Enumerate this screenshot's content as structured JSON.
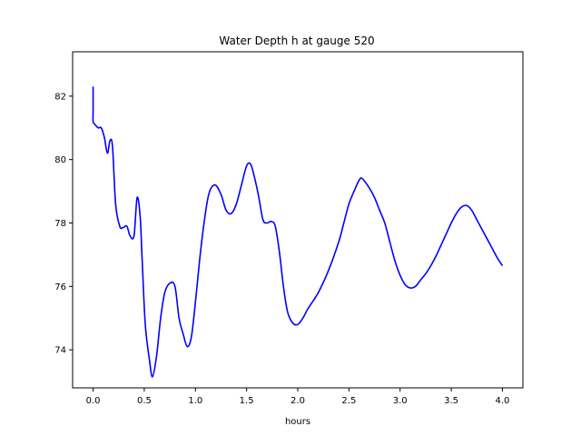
{
  "chart_data": {
    "type": "line",
    "title": "Water Depth h at gauge 520",
    "xlabel": "hours",
    "ylabel": "",
    "xlim": [
      -0.2,
      4.2
    ],
    "ylim": [
      72.8,
      83.4
    ],
    "xticks": [
      0.0,
      0.5,
      1.0,
      1.5,
      2.0,
      2.5,
      3.0,
      3.5,
      4.0
    ],
    "xtick_labels": [
      "0.0",
      "0.5",
      "1.0",
      "1.5",
      "2.0",
      "2.5",
      "3.0",
      "3.5",
      "4.0"
    ],
    "yticks": [
      74,
      76,
      78,
      80,
      82
    ],
    "ytick_labels": [
      "74",
      "76",
      "78",
      "80",
      "82"
    ],
    "grid": false,
    "legend": "none",
    "series": [
      {
        "color": "#0000ff",
        "x": [
          0.0,
          0.0,
          0.0,
          0.02,
          0.05,
          0.08,
          0.11,
          0.14,
          0.165,
          0.19,
          0.22,
          0.26,
          0.29,
          0.33,
          0.36,
          0.4,
          0.43,
          0.46,
          0.48,
          0.51,
          0.55,
          0.58,
          0.62,
          0.66,
          0.7,
          0.75,
          0.8,
          0.84,
          0.88,
          0.92,
          0.96,
          1.0,
          1.04,
          1.08,
          1.13,
          1.19,
          1.25,
          1.3,
          1.35,
          1.4,
          1.45,
          1.5,
          1.54,
          1.58,
          1.62,
          1.66,
          1.7,
          1.74,
          1.78,
          1.82,
          1.86,
          1.9,
          1.95,
          2.0,
          2.05,
          2.1,
          2.2,
          2.3,
          2.4,
          2.45,
          2.5,
          2.55,
          2.6,
          2.63,
          2.7,
          2.75,
          2.8,
          2.85,
          2.9,
          2.95,
          3.0,
          3.05,
          3.1,
          3.15,
          3.2,
          3.25,
          3.3,
          3.35,
          3.4,
          3.45,
          3.5,
          3.55,
          3.6,
          3.65,
          3.7,
          3.75,
          3.8,
          3.85,
          3.9,
          3.95,
          4.0
        ],
        "y": [
          82.3,
          81.5,
          81.2,
          81.1,
          81.0,
          81.0,
          80.7,
          80.2,
          80.6,
          80.4,
          78.6,
          77.9,
          77.85,
          77.9,
          77.6,
          77.6,
          78.8,
          78.2,
          76.8,
          74.8,
          73.7,
          73.15,
          73.8,
          75.0,
          75.8,
          76.1,
          76.0,
          75.0,
          74.5,
          74.1,
          74.4,
          75.5,
          76.8,
          77.9,
          78.9,
          79.2,
          78.9,
          78.4,
          78.3,
          78.6,
          79.2,
          79.8,
          79.85,
          79.4,
          78.8,
          78.1,
          78.0,
          78.05,
          77.9,
          77.1,
          76.0,
          75.2,
          74.85,
          74.8,
          75.0,
          75.3,
          75.8,
          76.5,
          77.4,
          78.0,
          78.6,
          79.0,
          79.35,
          79.4,
          79.1,
          78.8,
          78.4,
          78.0,
          77.4,
          76.8,
          76.35,
          76.05,
          75.95,
          76.0,
          76.2,
          76.4,
          76.65,
          76.95,
          77.3,
          77.65,
          78.0,
          78.3,
          78.5,
          78.55,
          78.4,
          78.1,
          77.8,
          77.5,
          77.2,
          76.9,
          76.65
        ]
      }
    ]
  }
}
